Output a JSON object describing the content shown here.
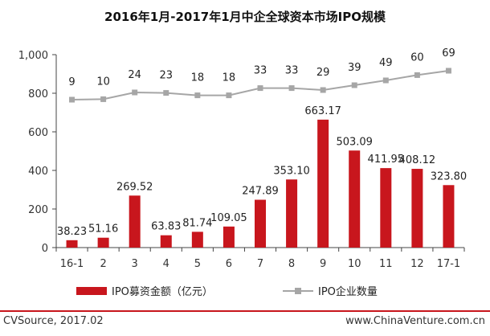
{
  "chart_data": {
    "type": "bar",
    "title": "2016年1月-2017年1月中企全球资本市场IPO规模",
    "categories": [
      "16-1",
      "2",
      "3",
      "4",
      "5",
      "6",
      "7",
      "8",
      "9",
      "10",
      "11",
      "12",
      "17-1"
    ],
    "ylim": [
      0,
      1000
    ],
    "yticks": [
      "0",
      "200",
      "400",
      "600",
      "800",
      "1,000"
    ],
    "grid": false,
    "legend_position": "bottom",
    "series": [
      {
        "name": "IPO募资金额（亿元）",
        "type": "bar",
        "color": "#c8161d",
        "values": [
          38.23,
          51.16,
          269.52,
          63.83,
          81.74,
          109.05,
          247.89,
          353.1,
          663.17,
          503.09,
          411.95,
          408.12,
          323.8
        ],
        "labels": [
          "38.23",
          "51.16",
          "269.52",
          "63.83",
          "81.74",
          "109.05",
          "247.89",
          "353.10",
          "663.17",
          "503.09",
          "411.95",
          "408.12",
          "323.80"
        ]
      },
      {
        "name": "IPO企业数量",
        "type": "line",
        "color": "#a6a6a6",
        "values": [
          9,
          10,
          24,
          23,
          18,
          18,
          33,
          33,
          29,
          39,
          49,
          60,
          69
        ],
        "labels": [
          "9",
          "10",
          "24",
          "23",
          "18",
          "18",
          "33",
          "33",
          "29",
          "39",
          "49",
          "60",
          "69"
        ]
      }
    ]
  },
  "footer": {
    "source": "CVSource, 2017.02",
    "website": "www.ChinaVenture.com.cn"
  }
}
